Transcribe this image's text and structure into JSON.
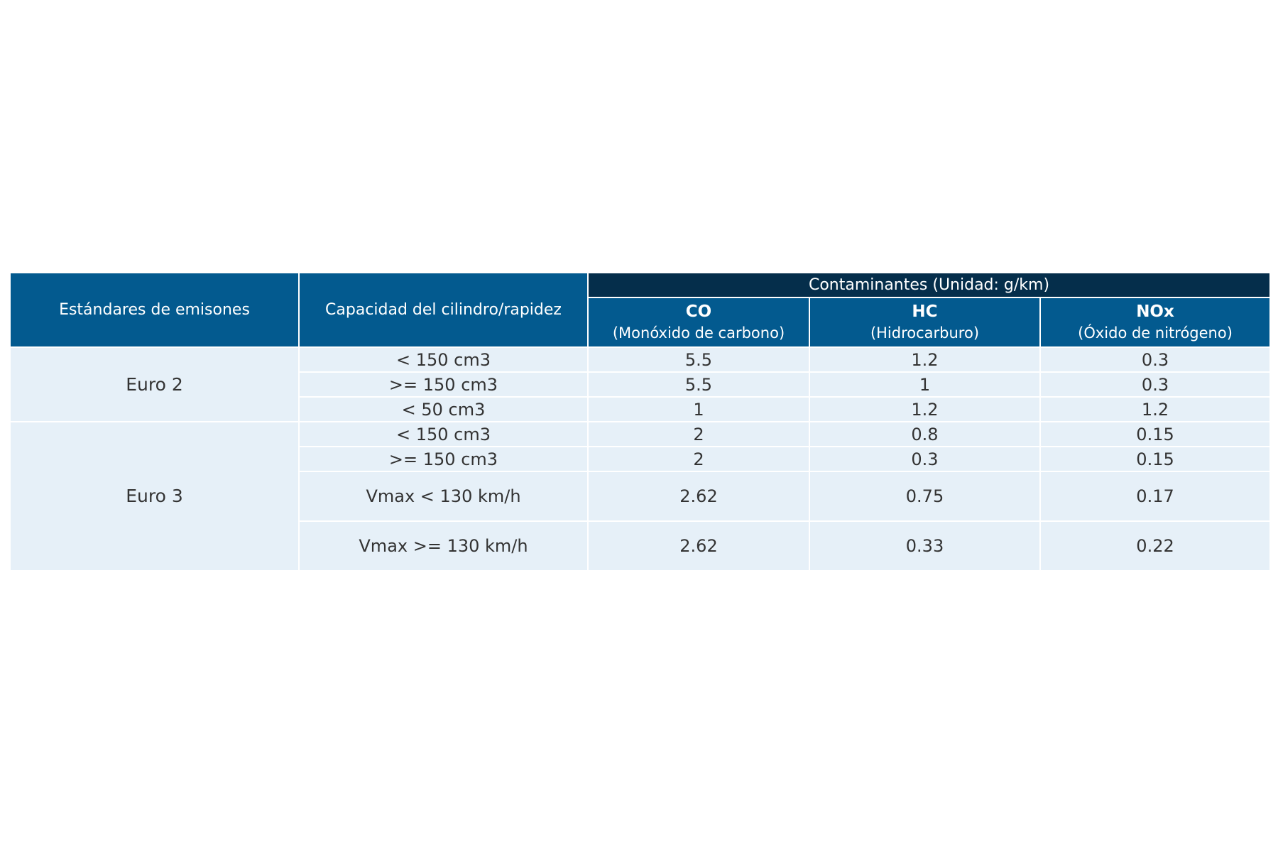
{
  "table": {
    "headers": {
      "standard": "Estándares de emisones",
      "capacity": "Capacidad del cilindro/rapidez",
      "group": "Contaminantes (Unidad: g/km)",
      "pollutants": [
        {
          "abbr": "CO",
          "full": "(Monóxido de carbono)"
        },
        {
          "abbr": "HC",
          "full": "(Hidrocarburo)"
        },
        {
          "abbr": "NOx",
          "full": "(Óxido de nitrógeno)"
        }
      ]
    },
    "groups": [
      {
        "standard": "Euro 2",
        "rows": [
          {
            "capacity": "< 150 cm3",
            "co": "5.5",
            "hc": "1.2",
            "nox": "0.3"
          },
          {
            "capacity": ">= 150 cm3",
            "co": "5.5",
            "hc": "1",
            "nox": "0.3"
          },
          {
            "capacity": "< 50 cm3",
            "co": "1",
            "hc": "1.2",
            "nox": "1.2"
          }
        ]
      },
      {
        "standard": "Euro 3",
        "rows": [
          {
            "capacity": "< 150 cm3",
            "co": "2",
            "hc": "0.8",
            "nox": "0.15"
          },
          {
            "capacity": ">= 150 cm3",
            "co": "2",
            "hc": "0.3",
            "nox": "0.15"
          },
          {
            "capacity": "Vmax < 130 km/h",
            "co": "2.62",
            "hc": "0.75",
            "nox": "0.17"
          },
          {
            "capacity": "Vmax >= 130 km/h",
            "co": "2.62",
            "hc": "0.33",
            "nox": "0.22"
          }
        ]
      }
    ]
  }
}
